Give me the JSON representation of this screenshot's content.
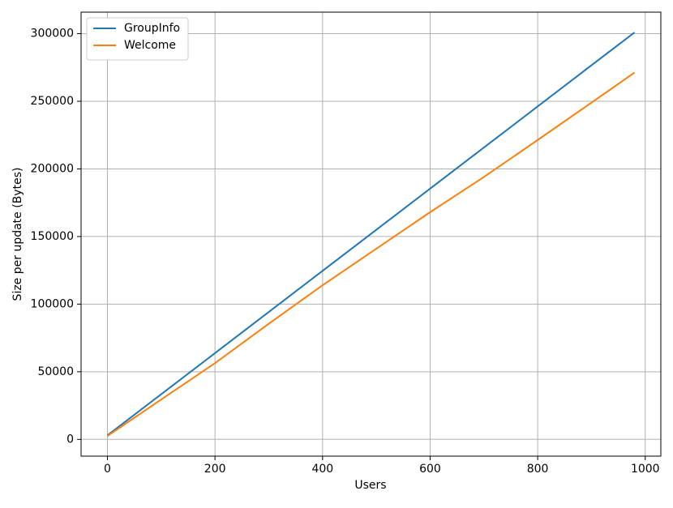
{
  "chart_data": {
    "type": "line",
    "x_label": "Users",
    "y_label": "Size per update (Bytes)",
    "x": [
      0,
      100,
      200,
      300,
      400,
      500,
      600,
      700,
      800,
      900,
      980
    ],
    "series": [
      {
        "name": "GroupInfo",
        "color": "#1f77b4",
        "values": [
          3000,
          33400,
          63800,
          94200,
          124600,
          155000,
          185400,
          215800,
          246200,
          276600,
          300900
        ]
      },
      {
        "name": "Welcome",
        "color": "#ff7f0e",
        "values": [
          2500,
          29500,
          56400,
          85500,
          114000,
          141000,
          168000,
          194000,
          221400,
          249000,
          271200
        ]
      }
    ],
    "xlim": [
      -49,
      1029
    ],
    "ylim": [
      -12400,
      315900
    ],
    "xticks": [
      0,
      200,
      400,
      600,
      800,
      1000
    ],
    "yticks": [
      0,
      50000,
      100000,
      150000,
      200000,
      250000,
      300000
    ],
    "grid": true,
    "legend": "upper left"
  }
}
